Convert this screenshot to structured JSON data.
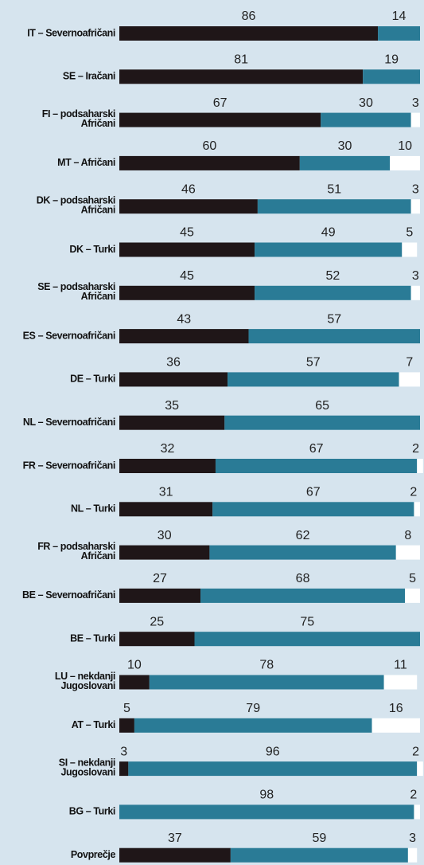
{
  "chart_data": {
    "type": "stacked_bar_horizontal",
    "categories": [
      [
        "IT – Severnoafričani"
      ],
      [
        "SE – Iračani"
      ],
      [
        "FI – podsaharski",
        "Afričani"
      ],
      [
        "MT – Afričani"
      ],
      [
        "DK – podsaharski",
        "Afričani"
      ],
      [
        "DK – Turki"
      ],
      [
        "SE – podsaharski",
        "Afričani"
      ],
      [
        "ES – Severnoafričani"
      ],
      [
        "DE – Turki"
      ],
      [
        "NL – Severnoafričani"
      ],
      [
        "FR – Severnoafričani"
      ],
      [
        "NL – Turki"
      ],
      [
        "FR – podsaharski",
        "Afričani"
      ],
      [
        "BE – Severnoafričani"
      ],
      [
        "BE – Turki"
      ],
      [
        "LU – nekdanji",
        "Jugoslovani"
      ],
      [
        "AT – Turki"
      ],
      [
        "SI – nekdanji",
        "Jugoslovani"
      ],
      [
        "BG – Turki"
      ],
      [
        "Povprečje"
      ]
    ],
    "xlim": [
      0,
      100
    ],
    "series": [
      {
        "color": "#1f1618",
        "values": [
          86,
          81,
          67,
          60,
          46,
          45,
          45,
          43,
          36,
          35,
          32,
          31,
          30,
          27,
          25,
          10,
          5,
          3,
          null,
          37
        ]
      },
      {
        "color": "#2a7b96",
        "values": [
          14,
          19,
          30,
          30,
          51,
          49,
          52,
          57,
          57,
          65,
          67,
          67,
          62,
          68,
          75,
          78,
          79,
          96,
          98,
          59
        ]
      },
      {
        "color": "#ffffff",
        "values": [
          null,
          null,
          3,
          10,
          3,
          5,
          3,
          null,
          7,
          null,
          2,
          2,
          8,
          5,
          null,
          11,
          16,
          2,
          2,
          3
        ]
      }
    ]
  }
}
